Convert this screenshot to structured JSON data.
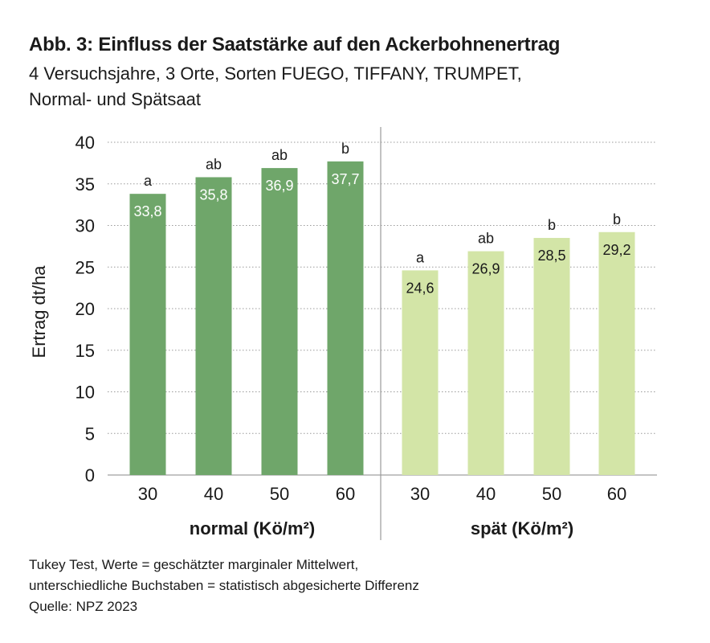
{
  "title": "Abb. 3: Einfluss der Saatstärke auf den Ackerbohnenertrag",
  "subtitle_lines": [
    "4 Versuchsjahre, 3 Orte, Sorten FUEGO, TIFFANY, TRUMPET,",
    "Normal- und Spätsaat"
  ],
  "footnote_lines": [
    "Tukey Test, Werte = geschätzter marginaler Mittelwert,",
    "unterschiedliche Buchstaben = statistisch abgesicherte Differenz",
    "Quelle: NPZ 2023"
  ],
  "colors": {
    "normal": "#6fa66a",
    "spaet": "#d3e5a7",
    "grid": "#9a9a9a",
    "divider": "#9a9a9a",
    "label_on_dark": "#ffffff",
    "label_on_light": "#1a1a1a"
  },
  "chart_data": {
    "type": "bar",
    "ylabel": "Ertrag dt/ha",
    "ylim": [
      0,
      40
    ],
    "yticks": [
      0,
      5,
      10,
      15,
      20,
      25,
      30,
      35,
      40
    ],
    "grid": true,
    "groups": [
      {
        "name": "normal (Kö/m²)",
        "categories": [
          "30",
          "40",
          "50",
          "60"
        ],
        "values": [
          33.8,
          35.8,
          36.9,
          37.7
        ],
        "value_labels": [
          "33,8",
          "35,8",
          "36,9",
          "37,7"
        ],
        "significance": [
          "a",
          "ab",
          "ab",
          "b"
        ]
      },
      {
        "name": "spät (Kö/m²)",
        "categories": [
          "30",
          "40",
          "50",
          "60"
        ],
        "values": [
          24.6,
          26.9,
          28.5,
          29.2
        ],
        "value_labels": [
          "24,6",
          "26,9",
          "28,5",
          "29,2"
        ],
        "significance": [
          "a",
          "ab",
          "b",
          "b"
        ]
      }
    ]
  }
}
